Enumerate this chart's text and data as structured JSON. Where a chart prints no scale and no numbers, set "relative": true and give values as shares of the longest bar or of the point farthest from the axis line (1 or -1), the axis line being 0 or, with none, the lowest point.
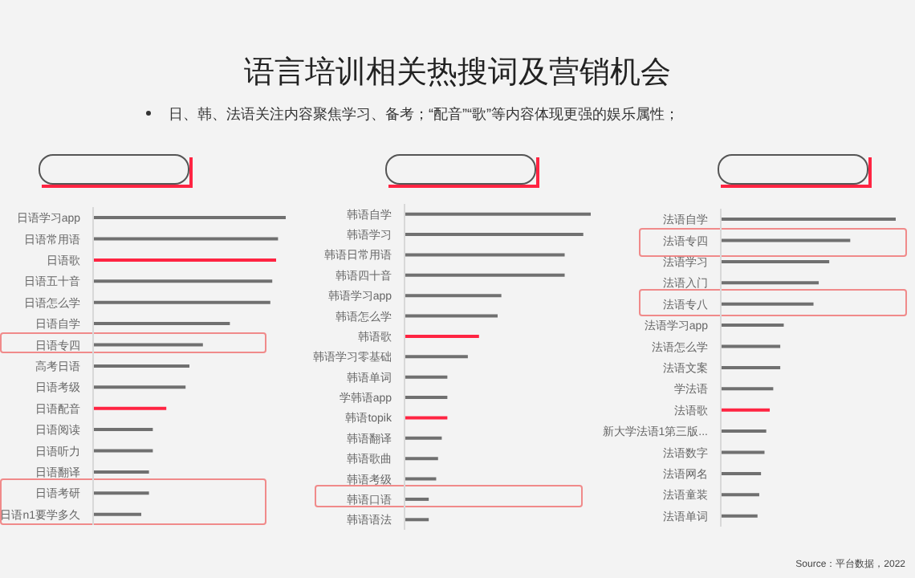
{
  "chart_data": [
    {
      "type": "bar",
      "orientation": "horizontal",
      "relative": true,
      "title": "语言培训相关热搜词及营销机会",
      "subtitle": "日、韩、法语关注内容聚焦学习、备考；“配音”“歌”等内容体现更强的娱乐属性；",
      "categories": [
        "日语学习app",
        "日语常用语",
        "日语歌",
        "日语五十音",
        "日语怎么学",
        "日语自学",
        "日语专四",
        "高考日语",
        "日语考级",
        "日语配音",
        "日语阅读",
        "日语听力",
        "日语翻译",
        "日语考研",
        "日语n1要学多久"
      ],
      "values": [
        1,
        0.96,
        0.95,
        0.93,
        0.92,
        0.71,
        0.57,
        0.5,
        0.48,
        0.38,
        0.31,
        0.31,
        0.29,
        0.29,
        0.25
      ],
      "colors": [
        "#707070",
        "#707070",
        "#ff2442",
        "#707070",
        "#707070",
        "#707070",
        "#707070",
        "#707070",
        "#707070",
        "#ff2442",
        "#707070",
        "#707070",
        "#707070",
        "#707070",
        "#707070"
      ]
    },
    {
      "type": "bar",
      "orientation": "horizontal",
      "relative": true,
      "categories": [
        "韩语自学",
        "韩语学习",
        "韩语日常用语",
        "韩语四十音",
        "韩语学习app",
        "韩语怎么学",
        "韩语歌",
        "韩语学习零基础",
        "韩语单词",
        "学韩语app",
        "韩语topik",
        "韩语翻译",
        "韩语歌曲",
        "韩语考级",
        "韩语口语",
        "韩语语法"
      ],
      "values": [
        1,
        0.96,
        0.86,
        0.86,
        0.52,
        0.5,
        0.4,
        0.34,
        0.23,
        0.23,
        0.23,
        0.2,
        0.18,
        0.17,
        0.13,
        0.13
      ],
      "colors": [
        "#707070",
        "#707070",
        "#707070",
        "#707070",
        "#707070",
        "#707070",
        "#ff2442",
        "#707070",
        "#707070",
        "#707070",
        "#ff2442",
        "#707070",
        "#707070",
        "#707070",
        "#707070",
        "#707070"
      ]
    },
    {
      "type": "bar",
      "orientation": "horizontal",
      "relative": true,
      "categories": [
        "法语自学",
        "法语专四",
        "法语学习",
        "法语入门",
        "法语专八",
        "法语学习app",
        "法语怎么学",
        "法语文案",
        "学法语",
        "法语歌",
        "新大学法语1第三版...",
        "法语数字",
        "法语网名",
        "法语童装",
        "法语单词"
      ],
      "values": [
        1,
        0.74,
        0.62,
        0.56,
        0.53,
        0.36,
        0.34,
        0.34,
        0.3,
        0.28,
        0.26,
        0.25,
        0.23,
        0.22,
        0.21
      ],
      "colors": [
        "#707070",
        "#707070",
        "#707070",
        "#707070",
        "#707070",
        "#707070",
        "#707070",
        "#707070",
        "#707070",
        "#ff2442",
        "#707070",
        "#707070",
        "#707070",
        "#707070",
        "#707070"
      ],
      "annotations": [
        "Source：平台数据，2022"
      ]
    }
  ]
}
